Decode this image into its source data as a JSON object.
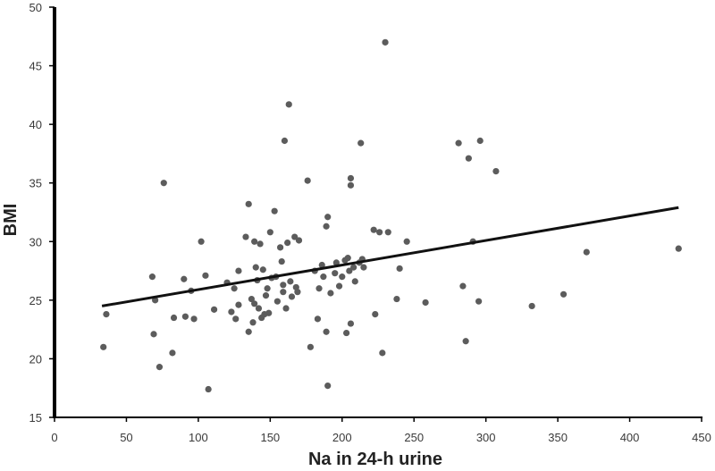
{
  "chart_data": {
    "type": "scatter",
    "title": "",
    "xlabel": "Na in 24-h urine",
    "ylabel": "BMI",
    "xlim": [
      0,
      450
    ],
    "ylim": [
      15,
      50
    ],
    "x_ticks": [
      "0",
      "50",
      "100",
      "150",
      "200",
      "250",
      "300",
      "350",
      "400",
      "450"
    ],
    "y_ticks": [
      "15",
      "20",
      "25",
      "30",
      "35",
      "40",
      "45",
      "50"
    ],
    "grid": false,
    "legend": "none",
    "point_color": "#5c5c5c",
    "line_color": "#111111",
    "points": [
      [
        34,
        21.0
      ],
      [
        36,
        23.8
      ],
      [
        68,
        27.0
      ],
      [
        69,
        22.1
      ],
      [
        70,
        25.0
      ],
      [
        73,
        19.3
      ],
      [
        76,
        35.0
      ],
      [
        82,
        20.5
      ],
      [
        83,
        23.5
      ],
      [
        90,
        26.8
      ],
      [
        91,
        23.6
      ],
      [
        95,
        25.8
      ],
      [
        97,
        23.4
      ],
      [
        102,
        30.0
      ],
      [
        105,
        27.1
      ],
      [
        107,
        17.4
      ],
      [
        111,
        24.2
      ],
      [
        120,
        26.5
      ],
      [
        123,
        24.0
      ],
      [
        125,
        26.0
      ],
      [
        126,
        23.4
      ],
      [
        128,
        24.6
      ],
      [
        128,
        27.5
      ],
      [
        133,
        30.4
      ],
      [
        135,
        33.2
      ],
      [
        135,
        22.3
      ],
      [
        137,
        25.1
      ],
      [
        138,
        23.1
      ],
      [
        139,
        24.7
      ],
      [
        139,
        30.0
      ],
      [
        140,
        27.8
      ],
      [
        141,
        26.7
      ],
      [
        142,
        24.3
      ],
      [
        143,
        29.8
      ],
      [
        144,
        23.5
      ],
      [
        145,
        27.6
      ],
      [
        146,
        23.8
      ],
      [
        147,
        25.4
      ],
      [
        148,
        26.0
      ],
      [
        149,
        23.9
      ],
      [
        150,
        30.8
      ],
      [
        151,
        26.9
      ],
      [
        153,
        32.6
      ],
      [
        154,
        27.0
      ],
      [
        155,
        24.9
      ],
      [
        157,
        29.5
      ],
      [
        158,
        28.3
      ],
      [
        159,
        25.7
      ],
      [
        159,
        26.3
      ],
      [
        160,
        38.6
      ],
      [
        161,
        24.3
      ],
      [
        162,
        29.9
      ],
      [
        163,
        41.7
      ],
      [
        164,
        26.6
      ],
      [
        165,
        25.3
      ],
      [
        167,
        30.4
      ],
      [
        168,
        26.1
      ],
      [
        169,
        25.7
      ],
      [
        170,
        30.1
      ],
      [
        176,
        35.2
      ],
      [
        178,
        21.0
      ],
      [
        181,
        27.5
      ],
      [
        183,
        23.4
      ],
      [
        184,
        26.0
      ],
      [
        186,
        28.0
      ],
      [
        187,
        27.0
      ],
      [
        189,
        22.3
      ],
      [
        189,
        31.3
      ],
      [
        190,
        32.1
      ],
      [
        190,
        17.7
      ],
      [
        192,
        25.6
      ],
      [
        195,
        27.3
      ],
      [
        196,
        28.2
      ],
      [
        198,
        26.2
      ],
      [
        200,
        27.0
      ],
      [
        202,
        28.4
      ],
      [
        203,
        22.2
      ],
      [
        204,
        28.6
      ],
      [
        205,
        27.5
      ],
      [
        206,
        35.4
      ],
      [
        206,
        34.8
      ],
      [
        206,
        23.0
      ],
      [
        208,
        27.8
      ],
      [
        209,
        26.6
      ],
      [
        212,
        28.2
      ],
      [
        213,
        38.4
      ],
      [
        214,
        28.5
      ],
      [
        215,
        27.8
      ],
      [
        222,
        31.0
      ],
      [
        223,
        23.8
      ],
      [
        226,
        30.8
      ],
      [
        228,
        20.5
      ],
      [
        230,
        47.0
      ],
      [
        232,
        30.8
      ],
      [
        238,
        25.1
      ],
      [
        240,
        27.7
      ],
      [
        245,
        30.0
      ],
      [
        258,
        24.8
      ],
      [
        281,
        38.4
      ],
      [
        284,
        26.2
      ],
      [
        286,
        21.5
      ],
      [
        288,
        37.1
      ],
      [
        291,
        30.0
      ],
      [
        295,
        24.9
      ],
      [
        296,
        38.6
      ],
      [
        307,
        36.0
      ],
      [
        332,
        24.5
      ],
      [
        354,
        25.5
      ],
      [
        370,
        29.1
      ],
      [
        434,
        29.4
      ]
    ],
    "trendline": {
      "x": [
        33,
        434
      ],
      "y": [
        24.5,
        32.9
      ]
    }
  }
}
